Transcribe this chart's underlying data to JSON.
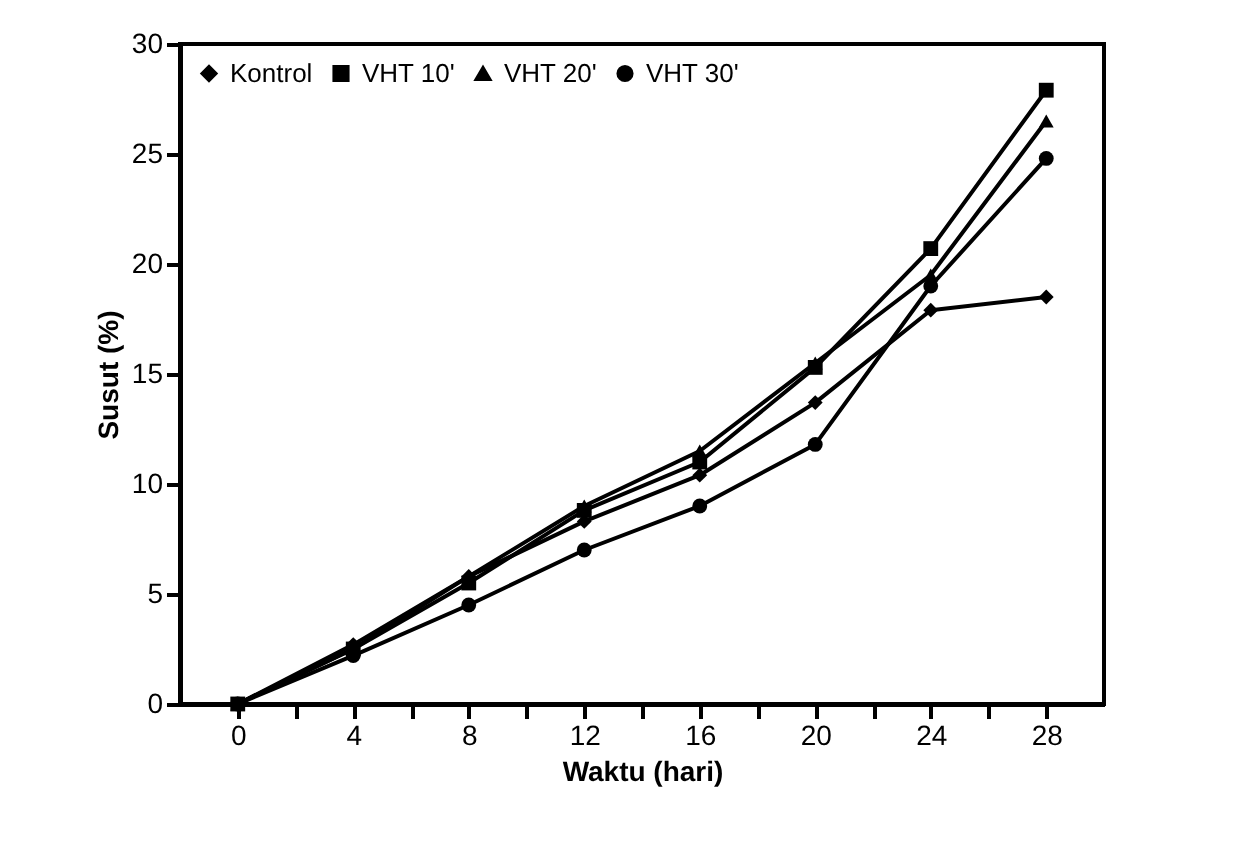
{
  "chart_data": {
    "type": "line",
    "xlabel": "Waktu (hari)",
    "ylabel": "Susut (%)",
    "x": [
      0,
      4,
      8,
      12,
      16,
      20,
      24,
      28
    ],
    "series": [
      {
        "name": "Kontrol",
        "color": "#000000",
        "marker": "diamond",
        "values": [
          0,
          2.7,
          5.8,
          8.3,
          10.4,
          13.7,
          17.9,
          18.5
        ]
      },
      {
        "name": "VHT 10'",
        "color": "#000000",
        "marker": "square",
        "values": [
          0,
          2.5,
          5.5,
          8.8,
          11,
          15.3,
          20.7,
          27.9
        ]
      },
      {
        "name": "VHT 20'",
        "color": "#000000",
        "marker": "triangle",
        "values": [
          0,
          2.5,
          5.8,
          9,
          11.5,
          15.5,
          19.5,
          26.5
        ]
      },
      {
        "name": "VHT 30'",
        "color": "#000000",
        "marker": "circle",
        "values": [
          0,
          2.2,
          4.5,
          7,
          9,
          11.8,
          19,
          24.8
        ]
      }
    ],
    "xlim": [
      -2,
      30
    ],
    "xticks": [
      0,
      {
        "value": 2,
        "label": null
      },
      4,
      {
        "value": 6,
        "label": null
      },
      8,
      {
        "value": 10,
        "label": null
      },
      12,
      {
        "value": 14,
        "label": null
      },
      16,
      {
        "value": 18,
        "label": null
      },
      20,
      {
        "value": 22,
        "label": null
      },
      24,
      {
        "value": 26,
        "label": null
      },
      28
    ],
    "ylim": [
      0,
      30
    ],
    "yticks": [
      0,
      5,
      10,
      15,
      20,
      25,
      30
    ],
    "grid": false,
    "legend": "top left",
    "line_style": "solid"
  }
}
